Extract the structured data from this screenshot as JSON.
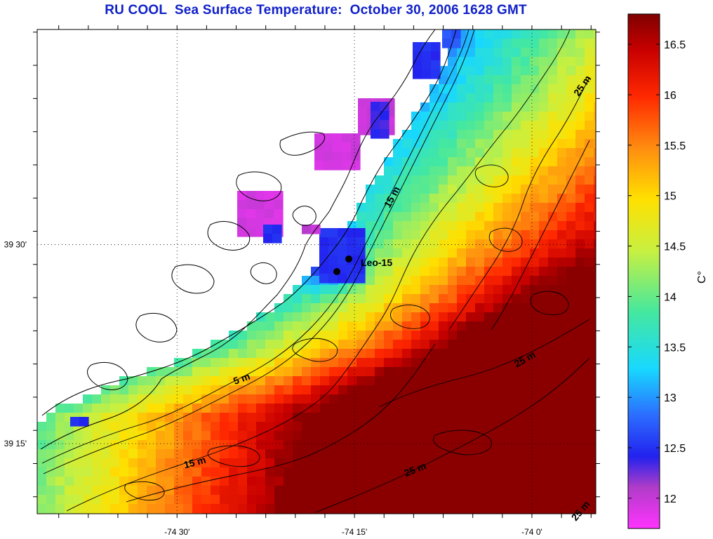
{
  "title": "RU COOL  Sea Surface Temperature:  October 30, 2006 1628 GMT",
  "colorbar": {
    "unit_label": "C°",
    "min": 11.7,
    "max": 16.8,
    "ticks": [
      {
        "value": 12,
        "label": "12"
      },
      {
        "value": 12.5,
        "label": "12.5"
      },
      {
        "value": 13,
        "label": "13"
      },
      {
        "value": 13.5,
        "label": "13.5"
      },
      {
        "value": 14,
        "label": "14"
      },
      {
        "value": 14.5,
        "label": "14.5"
      },
      {
        "value": 15,
        "label": "15"
      },
      {
        "value": 15.5,
        "label": "15.5"
      },
      {
        "value": 16,
        "label": "16"
      },
      {
        "value": 16.5,
        "label": "16.5"
      }
    ]
  },
  "axes": {
    "lon_labels": [
      {
        "value": -74.5,
        "label": "-74 30'"
      },
      {
        "value": -74.25,
        "label": "-74 15'"
      },
      {
        "value": -74.0,
        "label": "-74 0'"
      }
    ],
    "lat_labels": [
      {
        "value": 39.5,
        "label": "39 30'"
      },
      {
        "value": 39.25,
        "label": "39 15'"
      }
    ],
    "grid": "dotted"
  },
  "stations": {
    "label": "Leo-15"
  },
  "contour_labels": [
    {
      "id": "depth-5m",
      "text": "5 m"
    },
    {
      "id": "depth-15m-a",
      "text": "15 m"
    },
    {
      "id": "depth-15m-b",
      "text": "15 m"
    },
    {
      "id": "depth-25m-a",
      "text": "25 m"
    },
    {
      "id": "depth-25m-b",
      "text": "25 m"
    },
    {
      "id": "depth-25m-c",
      "text": "25 m"
    },
    {
      "id": "depth-25m-d",
      "text": "25 m"
    }
  ]
}
